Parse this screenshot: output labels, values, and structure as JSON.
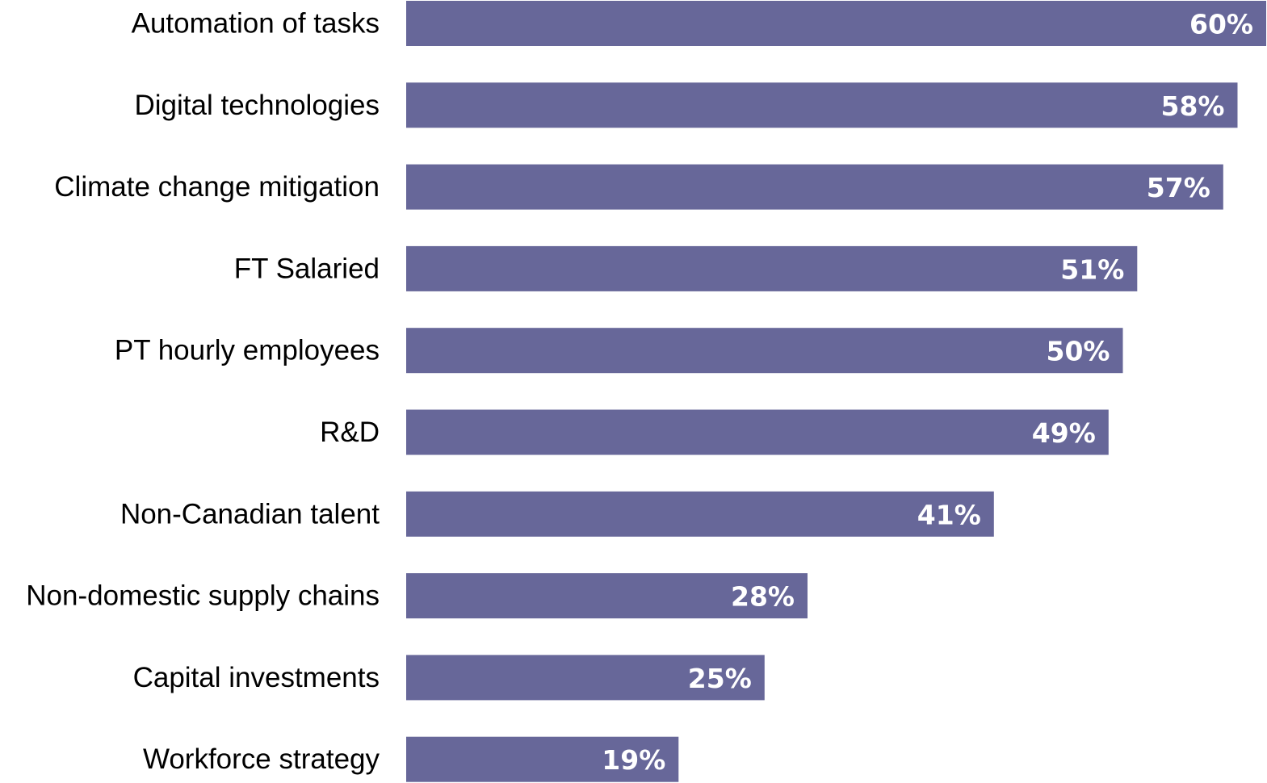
{
  "chart_data": {
    "type": "bar",
    "orientation": "horizontal",
    "categories": [
      "Automation of tasks",
      "Digital technologies",
      "Climate change mitigation",
      "FT Salaried",
      "PT hourly employees",
      "R&D",
      "Non-Canadian talent",
      "Non-domestic supply chains",
      "Capital investments",
      "Workforce strategy"
    ],
    "values": [
      60,
      58,
      57,
      51,
      50,
      49,
      41,
      28,
      25,
      19
    ],
    "value_labels": [
      "60%",
      "58%",
      "57%",
      "51%",
      "50%",
      "49%",
      "41%",
      "28%",
      "25%",
      "19%"
    ],
    "unit": "%",
    "xlim": [
      0,
      60
    ],
    "grid": false,
    "bar_color": "#676799",
    "value_label_color": "#ffffff"
  }
}
